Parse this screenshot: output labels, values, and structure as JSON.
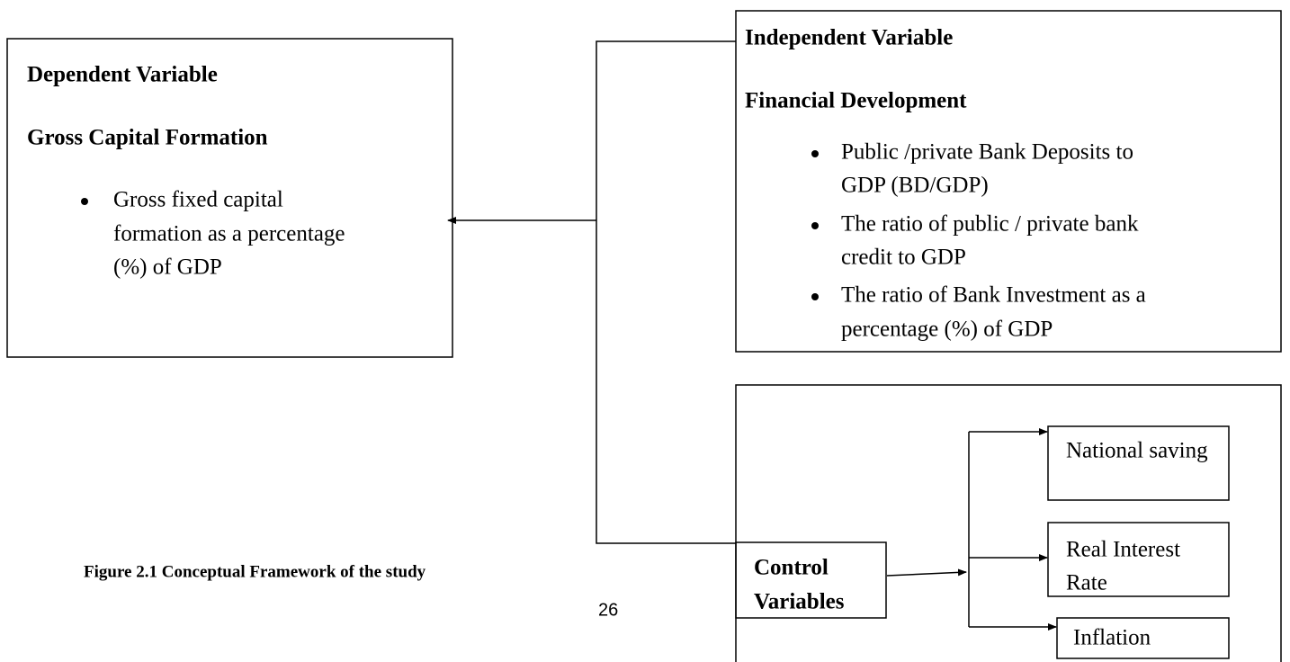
{
  "dependent": {
    "heading": "Dependent Variable",
    "title": "Gross Capital Formation",
    "bullets": [
      [
        "Gross fixed capital",
        "formation as a percentage",
        "(%) of GDP"
      ]
    ]
  },
  "independent": {
    "heading": "Independent Variable",
    "title": "Financial Development",
    "bullets": [
      [
        "Public /private Bank Deposits to",
        "GDP (BD/GDP)"
      ],
      [
        "The ratio of public / private bank",
        "credit to GDP"
      ],
      [
        "The ratio of Bank Investment as a",
        "percentage (%) of GDP"
      ]
    ]
  },
  "control": {
    "label": [
      "Control",
      "Variables"
    ],
    "items": [
      [
        "National saving"
      ],
      [
        "Real Interest",
        "Rate"
      ],
      [
        "Inflation"
      ]
    ]
  },
  "caption": "Figure 2.1 Conceptual Framework of the study",
  "page_number": "26"
}
